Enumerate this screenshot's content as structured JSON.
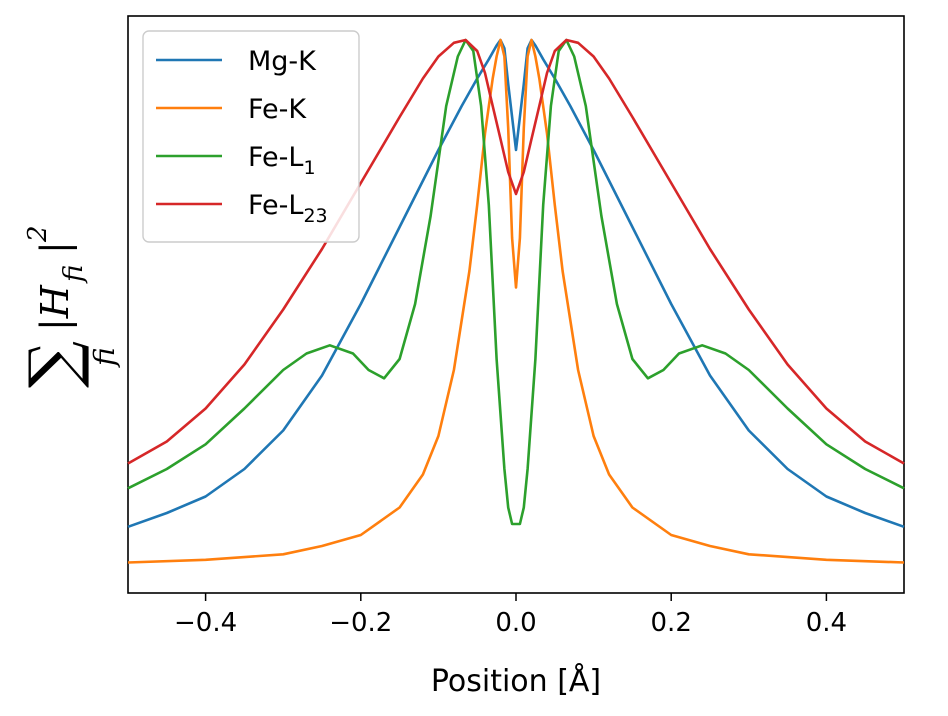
{
  "chart_data": {
    "type": "line",
    "title": "",
    "xlabel": "Position [Å]",
    "ylabel": "∑ fi |H fi|^2",
    "ylabel_parts": {
      "sum": "∑",
      "sum_sub": "fi",
      "body": "|H",
      "body_sub": "fi",
      "close": "|",
      "power": "2"
    },
    "xlim": [
      -0.5,
      0.5
    ],
    "ylim": [
      0,
      1.05
    ],
    "xticks": [
      -0.4,
      -0.2,
      0.0,
      0.2,
      0.4
    ],
    "xtick_labels": [
      "−0.4",
      "−0.2",
      "0.0",
      "0.2",
      "0.4"
    ],
    "yticks_visible": false,
    "grid": false,
    "legend_position": "top-left",
    "series": [
      {
        "name": "Mg-K",
        "label_main": "Mg-K",
        "label_sub": "",
        "color": "#1f77b4",
        "x": [
          -0.5,
          -0.45,
          -0.4,
          -0.35,
          -0.3,
          -0.25,
          -0.2,
          -0.15,
          -0.1,
          -0.07,
          -0.05,
          -0.035,
          -0.025,
          -0.02,
          -0.015,
          -0.01,
          -0.005,
          0,
          0.005,
          0.01,
          0.015,
          0.02,
          0.025,
          0.035,
          0.05,
          0.07,
          0.1,
          0.15,
          0.2,
          0.25,
          0.3,
          0.35,
          0.4,
          0.45,
          0.5
        ],
        "y": [
          0.115,
          0.14,
          0.17,
          0.22,
          0.29,
          0.39,
          0.52,
          0.66,
          0.8,
          0.88,
          0.93,
          0.965,
          0.99,
          1.0,
          0.985,
          0.92,
          0.86,
          0.8,
          0.86,
          0.92,
          0.985,
          1.0,
          0.99,
          0.965,
          0.93,
          0.88,
          0.8,
          0.66,
          0.52,
          0.39,
          0.29,
          0.22,
          0.17,
          0.14,
          0.115
        ]
      },
      {
        "name": "Fe-K",
        "label_main": "Fe-K",
        "label_sub": "",
        "color": "#ff7f0e",
        "x": [
          -0.5,
          -0.4,
          -0.3,
          -0.25,
          -0.2,
          -0.15,
          -0.12,
          -0.1,
          -0.08,
          -0.06,
          -0.05,
          -0.04,
          -0.03,
          -0.025,
          -0.02,
          -0.015,
          -0.01,
          -0.005,
          0,
          0.005,
          0.01,
          0.015,
          0.02,
          0.025,
          0.03,
          0.04,
          0.05,
          0.06,
          0.08,
          0.1,
          0.12,
          0.15,
          0.2,
          0.25,
          0.3,
          0.4,
          0.5
        ],
        "y": [
          0.05,
          0.055,
          0.065,
          0.08,
          0.1,
          0.15,
          0.21,
          0.28,
          0.4,
          0.58,
          0.7,
          0.83,
          0.93,
          0.97,
          1.0,
          0.97,
          0.84,
          0.64,
          0.55,
          0.64,
          0.84,
          0.97,
          1.0,
          0.97,
          0.93,
          0.83,
          0.7,
          0.58,
          0.4,
          0.28,
          0.21,
          0.15,
          0.1,
          0.08,
          0.065,
          0.055,
          0.05
        ]
      },
      {
        "name": "Fe-L1",
        "label_main": "Fe-L",
        "label_sub": "1",
        "color": "#2ca02c",
        "x": [
          -0.5,
          -0.45,
          -0.4,
          -0.35,
          -0.3,
          -0.27,
          -0.24,
          -0.21,
          -0.19,
          -0.17,
          -0.15,
          -0.13,
          -0.11,
          -0.09,
          -0.075,
          -0.065,
          -0.055,
          -0.045,
          -0.035,
          -0.025,
          -0.015,
          -0.01,
          -0.005,
          0,
          0.005,
          0.01,
          0.015,
          0.025,
          0.035,
          0.045,
          0.055,
          0.065,
          0.075,
          0.09,
          0.11,
          0.13,
          0.15,
          0.17,
          0.19,
          0.21,
          0.24,
          0.27,
          0.3,
          0.35,
          0.4,
          0.45,
          0.5
        ],
        "y": [
          0.185,
          0.22,
          0.265,
          0.33,
          0.4,
          0.43,
          0.445,
          0.43,
          0.4,
          0.385,
          0.42,
          0.52,
          0.68,
          0.88,
          0.97,
          1.0,
          0.98,
          0.88,
          0.7,
          0.42,
          0.22,
          0.15,
          0.12,
          0.12,
          0.12,
          0.15,
          0.22,
          0.42,
          0.7,
          0.88,
          0.98,
          1.0,
          0.97,
          0.88,
          0.68,
          0.52,
          0.42,
          0.385,
          0.4,
          0.43,
          0.445,
          0.43,
          0.4,
          0.33,
          0.265,
          0.22,
          0.185
        ]
      },
      {
        "name": "Fe-L23",
        "label_main": "Fe-L",
        "label_sub": "23",
        "color": "#d62728",
        "x": [
          -0.5,
          -0.45,
          -0.4,
          -0.35,
          -0.3,
          -0.25,
          -0.2,
          -0.15,
          -0.12,
          -0.1,
          -0.08,
          -0.065,
          -0.05,
          -0.04,
          -0.03,
          -0.02,
          -0.01,
          0,
          0.01,
          0.02,
          0.03,
          0.04,
          0.05,
          0.065,
          0.08,
          0.1,
          0.12,
          0.15,
          0.2,
          0.25,
          0.3,
          0.35,
          0.4,
          0.45,
          0.5
        ],
        "y": [
          0.23,
          0.27,
          0.33,
          0.41,
          0.51,
          0.62,
          0.74,
          0.86,
          0.93,
          0.97,
          0.995,
          1.0,
          0.98,
          0.94,
          0.88,
          0.82,
          0.76,
          0.72,
          0.76,
          0.82,
          0.88,
          0.94,
          0.98,
          1.0,
          0.995,
          0.97,
          0.93,
          0.86,
          0.74,
          0.62,
          0.51,
          0.41,
          0.33,
          0.27,
          0.23
        ]
      }
    ]
  }
}
